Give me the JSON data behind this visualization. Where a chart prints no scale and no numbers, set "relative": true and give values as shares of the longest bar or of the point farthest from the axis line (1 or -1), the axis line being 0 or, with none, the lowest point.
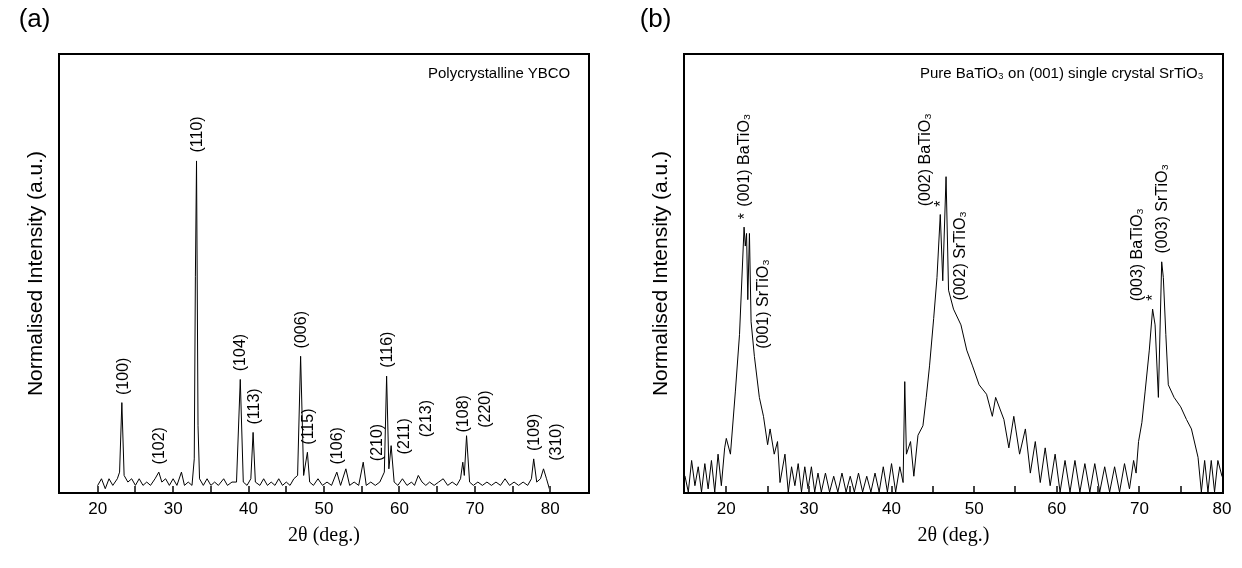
{
  "chart_data": [
    {
      "type": "line",
      "title": "(a)",
      "xlabel": "2θ (deg.)",
      "ylabel": "Normalised Intensity (a.u.)",
      "relative": true,
      "tick_labels": "x",
      "xlim": [
        15,
        85
      ],
      "xticks": [
        20,
        {
          "value": 25,
          "label": null
        },
        30,
        {
          "value": 35,
          "label": null
        },
        40,
        {
          "value": 45,
          "label": null
        },
        50,
        {
          "value": 55,
          "label": null
        },
        60,
        {
          "value": 65,
          "label": null
        },
        70,
        {
          "value": 75,
          "label": null
        },
        80
      ],
      "x": [
        20,
        20.5,
        21,
        21.5,
        22,
        22.6,
        22.9,
        23.2,
        23.5,
        24,
        24.5,
        25,
        25.5,
        26,
        26.5,
        27,
        27.6,
        28.1,
        28.5,
        29,
        29.5,
        30,
        30.5,
        31.1,
        31.5,
        32,
        32.5,
        32.8,
        32.95,
        33.1,
        33.3,
        33.5,
        34,
        34.5,
        35,
        35.5,
        36,
        36.7,
        37.2,
        37.8,
        38.4,
        38.9,
        39.3,
        39.8,
        40.3,
        40.6,
        40.9,
        41.5,
        42,
        42.5,
        43,
        43.5,
        44,
        44.5,
        45,
        45.5,
        46,
        46.5,
        46.9,
        47.3,
        47.8,
        48.1,
        48.6,
        49.2,
        49.8,
        50.4,
        51,
        51.7,
        52.2,
        52.9,
        53.4,
        54,
        54.6,
        55.2,
        55.6,
        56.2,
        56.8,
        57.4,
        58,
        58.3,
        58.6,
        58.9,
        59.3,
        59.8,
        60.4,
        61,
        61.6,
        62,
        62.5,
        63,
        63.5,
        64,
        64.6,
        65.2,
        65.8,
        66.4,
        67,
        67.6,
        68.1,
        68.4,
        68.6,
        68.9,
        69.3,
        69.8,
        70.4,
        71,
        71.6,
        72.2,
        72.8,
        73.4,
        74,
        74.6,
        75.2,
        75.8,
        76.4,
        77,
        77.5,
        77.8,
        78.2,
        78.7,
        79.1,
        79.5,
        80
      ],
      "series": [
        {
          "color": "#000000",
          "values": [
            0.02,
            0.04,
            0.01,
            0.04,
            0.02,
            0.04,
            0.06,
            0.27,
            0.05,
            0.03,
            0.04,
            0.02,
            0.04,
            0.02,
            0.03,
            0.02,
            0.04,
            0.06,
            0.03,
            0.04,
            0.02,
            0.04,
            0.02,
            0.06,
            0.02,
            0.03,
            0.02,
            0.1,
            0.65,
            1.0,
            0.2,
            0.04,
            0.02,
            0.04,
            0.02,
            0.03,
            0.02,
            0.04,
            0.02,
            0.03,
            0.03,
            0.34,
            0.03,
            0.02,
            0.04,
            0.18,
            0.03,
            0.02,
            0.04,
            0.02,
            0.03,
            0.02,
            0.04,
            0.02,
            0.03,
            0.02,
            0.04,
            0.05,
            0.41,
            0.05,
            0.12,
            0.03,
            0.02,
            0.04,
            0.02,
            0.03,
            0.02,
            0.06,
            0.02,
            0.07,
            0.02,
            0.03,
            0.02,
            0.09,
            0.02,
            0.03,
            0.02,
            0.03,
            0.06,
            0.35,
            0.07,
            0.14,
            0.03,
            0.02,
            0.04,
            0.02,
            0.03,
            0.02,
            0.05,
            0.03,
            0.02,
            0.03,
            0.02,
            0.03,
            0.04,
            0.02,
            0.03,
            0.02,
            0.04,
            0.09,
            0.05,
            0.17,
            0.03,
            0.02,
            0.03,
            0.02,
            0.03,
            0.02,
            0.03,
            0.02,
            0.04,
            0.02,
            0.03,
            0.02,
            0.03,
            0.02,
            0.04,
            0.1,
            0.03,
            0.04,
            0.07,
            0.04,
            0.0
          ]
        }
      ],
      "annotations": [
        "Polycrystalline YBCO",
        {
          "text": "(100)",
          "x": 23.2,
          "y": 0.27
        },
        {
          "text": "(102)",
          "x": 28.1,
          "y": 0.06
        },
        {
          "text": "(110)",
          "x": 33.1,
          "y": 1.0
        },
        {
          "text": "(104)",
          "x": 38.9,
          "y": 0.34
        },
        {
          "text": "(113)",
          "x": 40.6,
          "y": 0.18
        },
        {
          "text": "(006)",
          "x": 46.9,
          "y": 0.41
        },
        {
          "text": "(115)",
          "x": 47.8,
          "y": 0.12
        },
        {
          "text": "(106)",
          "x": 51.7,
          "y": 0.06
        },
        {
          "text": "(210)",
          "x": 52.9,
          "y": 0.07
        },
        {
          "text": "(211)",
          "x": 55.2,
          "y": 0.09
        },
        {
          "text": "(116)",
          "x": 58.3,
          "y": 0.35
        },
        {
          "text": "(213)",
          "x": 58.9,
          "y": 0.14
        },
        {
          "text": "(108)",
          "x": 68.4,
          "y": 0.09
        },
        {
          "text": "(220)",
          "x": 68.9,
          "y": 0.17
        },
        {
          "text": "(109)",
          "x": 77.8,
          "y": 0.1
        },
        {
          "text": "(310)",
          "x": 79.1,
          "y": 0.07
        }
      ]
    },
    {
      "type": "line",
      "title": "(b)",
      "xlabel": "2θ (deg.)",
      "ylabel": "Normalised Intensity (a.u.)",
      "relative": true,
      "tick_labels": "x",
      "xlim": [
        15,
        80
      ],
      "xticks": [
        20,
        {
          "value": 25,
          "label": null
        },
        30,
        {
          "value": 35,
          "label": null
        },
        40,
        {
          "value": 45,
          "label": null
        },
        50,
        {
          "value": 55,
          "label": null
        },
        60,
        {
          "value": 65,
          "label": null
        },
        70,
        {
          "value": 75,
          "label": null
        },
        80
      ],
      "x": [
        15,
        15.4,
        15.8,
        16.2,
        16.6,
        17,
        17.4,
        17.8,
        18.2,
        18.6,
        19,
        19.4,
        19.8,
        20,
        20.5,
        21.1,
        21.6,
        22.15,
        22.3,
        22.45,
        22.6,
        22.8,
        23,
        23.4,
        24,
        24.5,
        25,
        25.3,
        25.8,
        26.2,
        26.5,
        27.1,
        27.5,
        27.9,
        28.3,
        28.7,
        29.1,
        29.5,
        29.9,
        30.3,
        30.7,
        31.1,
        31.5,
        32,
        32.5,
        33,
        33.5,
        34,
        34.5,
        35,
        35.5,
        36,
        36.5,
        37,
        37.5,
        38,
        38.5,
        39,
        39.5,
        40,
        40.5,
        41,
        41.4,
        41.6,
        41.8,
        42.3,
        42.7,
        43.2,
        43.8,
        44.2,
        44.6,
        45.1,
        45.5,
        45.9,
        46.2,
        46.6,
        46.9,
        47.5,
        48.4,
        49.1,
        49.8,
        50.6,
        51.5,
        52.2,
        52.6,
        53.6,
        54.2,
        54.8,
        55.5,
        56.2,
        56.8,
        57.4,
        58,
        58.6,
        59.2,
        59.8,
        60.4,
        61,
        61.6,
        62.2,
        62.8,
        63.4,
        64,
        64.6,
        65.2,
        65.8,
        66.4,
        67,
        67.6,
        68.2,
        68.8,
        69.3,
        69.6,
        69.9,
        70.3,
        70.7,
        71.2,
        71.6,
        71.9,
        72.3,
        72.7,
        72.9,
        73.2,
        73.5,
        74.2,
        75,
        75.7,
        76.3,
        77.1,
        77.5,
        77.9,
        78.3,
        78.7,
        79.1,
        79.5,
        80
      ],
      "series": [
        {
          "color": "#000000",
          "values": [
            0.05,
            0,
            0.1,
            0.02,
            0.08,
            0,
            0.09,
            0.01,
            0.1,
            0,
            0.12,
            0.02,
            0.14,
            0.17,
            0.12,
            0.32,
            0.5,
            0.84,
            0.78,
            0.82,
            0.61,
            0.82,
            0.54,
            0.43,
            0.3,
            0.24,
            0.15,
            0.2,
            0.12,
            0.16,
            0.03,
            0.12,
            0,
            0.08,
            0.02,
            0.09,
            0,
            0.08,
            0.01,
            0.08,
            0,
            0.06,
            0,
            0.06,
            0,
            0.05,
            0,
            0.06,
            0,
            0.05,
            0,
            0.06,
            0,
            0.05,
            0,
            0.06,
            0,
            0.08,
            0,
            0.09,
            0,
            0.08,
            0.03,
            0.35,
            0.12,
            0.16,
            0.05,
            0.18,
            0.21,
            0.3,
            0.4,
            0.55,
            0.68,
            0.88,
            0.67,
            1.0,
            0.64,
            0.58,
            0.53,
            0.45,
            0.4,
            0.34,
            0.31,
            0.24,
            0.3,
            0.23,
            0.14,
            0.24,
            0.12,
            0.2,
            0.06,
            0.16,
            0.03,
            0.14,
            0.02,
            0.12,
            0,
            0.1,
            0,
            0.1,
            0,
            0.09,
            0,
            0.09,
            0,
            0.08,
            0,
            0.08,
            0,
            0.09,
            0.01,
            0.1,
            0.06,
            0.16,
            0.22,
            0.32,
            0.45,
            0.58,
            0.53,
            0.3,
            0.73,
            0.68,
            0.5,
            0.34,
            0.3,
            0.27,
            0.23,
            0.2,
            0.11,
            0,
            0.1,
            0,
            0.1,
            0,
            0.1,
            0.05
          ]
        }
      ],
      "annotations": [
        "Pure BaTiO₃ on (001) single crystal SrTiO₃",
        {
          "text": "*",
          "x": 22.15,
          "y": 0.84
        },
        {
          "text": "(001) BaTiO₃",
          "x": 22.15,
          "y": 0.84
        },
        {
          "text": "(001) SrTiO₃",
          "x": 23.4,
          "y": 0.43
        },
        {
          "text": "*",
          "x": 45.9,
          "y": 0.88
        },
        {
          "text": "(002) BaTiO₃",
          "x": 45.9,
          "y": 0.88
        },
        {
          "text": "(002) SrTiO₃",
          "x": 47.5,
          "y": 0.58
        },
        {
          "text": "*",
          "x": 71.6,
          "y": 0.58
        },
        {
          "text": "(003) BaTiO₃",
          "x": 71.6,
          "y": 0.58
        },
        {
          "text": "(003) SrTiO₃",
          "x": 72.7,
          "y": 0.73
        }
      ]
    }
  ]
}
